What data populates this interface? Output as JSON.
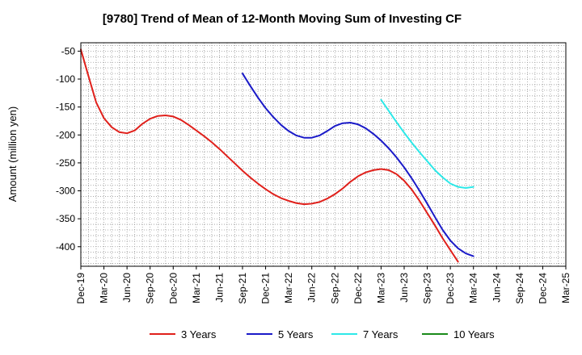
{
  "chart_data": {
    "type": "line",
    "title": "[9780]  Trend of Mean of 12-Month Moving Sum of Investing CF",
    "xlabel": "",
    "ylabel": "Amount (million yen)",
    "ylim": [
      -435,
      -35
    ],
    "yticks": [
      -50,
      -100,
      -150,
      -200,
      -250,
      -300,
      -350,
      -400
    ],
    "categories": [
      "Dec-19",
      "Mar-20",
      "Jun-20",
      "Sep-20",
      "Dec-20",
      "Mar-21",
      "Jun-21",
      "Sep-21",
      "Dec-21",
      "Mar-22",
      "Jun-22",
      "Sep-22",
      "Dec-22",
      "Mar-23",
      "Jun-23",
      "Sep-23",
      "Dec-23",
      "Mar-24",
      "Jun-24",
      "Sep-24",
      "Dec-24",
      "Mar-25"
    ],
    "grid": true,
    "legend_position": "bottom",
    "series": [
      {
        "name": "3 Years",
        "color": "#e0201b",
        "points": [
          [
            0,
            -47
          ],
          [
            1,
            -95
          ],
          [
            2,
            -142
          ],
          [
            3,
            -170
          ],
          [
            4,
            -186
          ],
          [
            5,
            -195
          ],
          [
            6,
            -197
          ],
          [
            7,
            -192
          ],
          [
            8,
            -180
          ],
          [
            9,
            -171
          ],
          [
            10,
            -166
          ],
          [
            11,
            -165
          ],
          [
            12,
            -167
          ],
          [
            13,
            -173
          ],
          [
            14,
            -182
          ],
          [
            15,
            -192
          ],
          [
            16,
            -202
          ],
          [
            17,
            -213
          ],
          [
            18,
            -225
          ],
          [
            19,
            -238
          ],
          [
            20,
            -251
          ],
          [
            21,
            -264
          ],
          [
            22,
            -276
          ],
          [
            23,
            -287
          ],
          [
            24,
            -297
          ],
          [
            25,
            -306
          ],
          [
            26,
            -313
          ],
          [
            27,
            -318
          ],
          [
            28,
            -322
          ],
          [
            29,
            -324
          ],
          [
            30,
            -323
          ],
          [
            31,
            -320
          ],
          [
            32,
            -314
          ],
          [
            33,
            -306
          ],
          [
            34,
            -296
          ],
          [
            35,
            -284
          ],
          [
            36,
            -274
          ],
          [
            37,
            -267
          ],
          [
            38,
            -263
          ],
          [
            39,
            -261
          ],
          [
            40,
            -263
          ],
          [
            41,
            -270
          ],
          [
            42,
            -282
          ],
          [
            43,
            -298
          ],
          [
            44,
            -318
          ],
          [
            45,
            -340
          ],
          [
            46,
            -362
          ],
          [
            47,
            -385
          ],
          [
            48,
            -406
          ],
          [
            49,
            -427
          ]
        ]
      },
      {
        "name": "5 Years",
        "color": "#1a1ac8",
        "points": [
          [
            21,
            -90
          ],
          [
            22,
            -112
          ],
          [
            23,
            -133
          ],
          [
            24,
            -152
          ],
          [
            25,
            -168
          ],
          [
            26,
            -182
          ],
          [
            27,
            -193
          ],
          [
            28,
            -201
          ],
          [
            29,
            -205
          ],
          [
            30,
            -205
          ],
          [
            31,
            -201
          ],
          [
            32,
            -193
          ],
          [
            33,
            -184
          ],
          [
            34,
            -179
          ],
          [
            35,
            -178
          ],
          [
            36,
            -181
          ],
          [
            37,
            -188
          ],
          [
            38,
            -198
          ],
          [
            39,
            -210
          ],
          [
            40,
            -224
          ],
          [
            41,
            -240
          ],
          [
            42,
            -258
          ],
          [
            43,
            -278
          ],
          [
            44,
            -300
          ],
          [
            45,
            -323
          ],
          [
            46,
            -347
          ],
          [
            47,
            -370
          ],
          [
            48,
            -389
          ],
          [
            49,
            -403
          ],
          [
            50,
            -412
          ],
          [
            51,
            -417
          ]
        ]
      },
      {
        "name": "7 Years",
        "color": "#2de8e8",
        "points": [
          [
            39,
            -137
          ],
          [
            40,
            -157
          ],
          [
            41,
            -177
          ],
          [
            42,
            -196
          ],
          [
            43,
            -214
          ],
          [
            44,
            -231
          ],
          [
            45,
            -247
          ],
          [
            46,
            -263
          ],
          [
            47,
            -276
          ],
          [
            48,
            -287
          ],
          [
            49,
            -293
          ],
          [
            50,
            -295
          ],
          [
            51,
            -293
          ]
        ]
      },
      {
        "name": "10 Years",
        "color": "#1a8a1a",
        "points": []
      }
    ]
  }
}
